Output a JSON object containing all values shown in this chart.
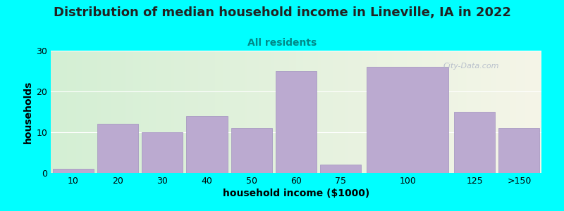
{
  "title": "Distribution of median household income in Lineville, IA in 2022",
  "subtitle": "All residents",
  "xlabel": "household income ($1000)",
  "ylabel": "households",
  "background_color": "#00FFFF",
  "plot_bg_gradient_left": "#d4efd4",
  "plot_bg_gradient_right": "#f5f5e8",
  "bar_color": "#bbaad0",
  "bar_edge_color": "#a090be",
  "categories": [
    "10",
    "20",
    "30",
    "40",
    "50",
    "60",
    "75",
    "100",
    "125",
    ">150"
  ],
  "values": [
    1,
    12,
    10,
    14,
    11,
    25,
    2,
    26,
    15,
    11
  ],
  "bar_widths": [
    1,
    1,
    1,
    1,
    1,
    1,
    1,
    2,
    1,
    1
  ],
  "bar_lefts": [
    0,
    1,
    2,
    3,
    4,
    5,
    6,
    7,
    9,
    10
  ],
  "ylim": [
    0,
    30
  ],
  "yticks": [
    0,
    10,
    20,
    30
  ],
  "total_width": 11,
  "title_fontsize": 13,
  "subtitle_fontsize": 10,
  "subtitle_color": "#008888",
  "title_color": "#222222",
  "axis_label_fontsize": 10,
  "tick_fontsize": 9,
  "watermark_text": "City-Data.com",
  "watermark_color": "#b0b8c8",
  "xtick_positions": [
    0.5,
    1.5,
    2.5,
    3.5,
    4.5,
    5.5,
    6.5,
    8.0,
    9.5,
    10.5
  ],
  "xtick_labels": [
    "10",
    "20",
    "30",
    "40",
    "50",
    "60",
    "75",
    "100",
    "125",
    ">150"
  ]
}
